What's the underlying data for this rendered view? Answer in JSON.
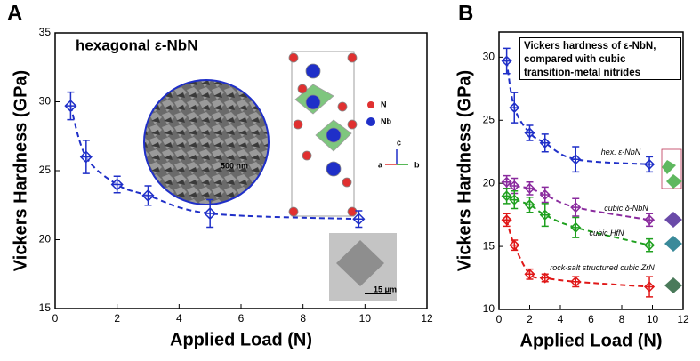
{
  "chart_data": [
    {
      "type": "line",
      "panel_label": "A",
      "title": "hexagonal ε-NbN",
      "x_label": "Applied Load (N)",
      "y_label": "Vickers Hardness (GPa)",
      "xlim": [
        0,
        12
      ],
      "xticks": [
        0,
        2,
        4,
        6,
        8,
        10,
        12
      ],
      "ylim": [
        15,
        35
      ],
      "yticks": [
        15,
        20,
        25,
        30,
        35
      ],
      "annotations": [
        "500 nm",
        "15 μm",
        "N",
        "Nb",
        "c",
        "a",
        "b"
      ],
      "x": [
        0.5,
        1,
        2,
        3,
        5,
        9.8
      ],
      "series": [
        {
          "color": "#1f2fc8",
          "values": [
            29.7,
            26,
            24,
            23.2,
            21.9,
            21.5
          ],
          "errors": [
            1,
            1.2,
            0.6,
            0.7,
            1,
            0.6
          ]
        }
      ]
    },
    {
      "type": "line",
      "panel_label": "B",
      "title_lines": [
        "Vickers hardness of ε-NbN,",
        "compared with cubic",
        "transition-metal nitrides"
      ],
      "x_label": "Applied Load (N)",
      "y_label": "Vickers Hardness (GPa)",
      "xlim": [
        0,
        12
      ],
      "xticks": [
        0,
        2,
        4,
        6,
        8,
        10,
        12
      ],
      "ylim": [
        10,
        32
      ],
      "yticks": [
        10,
        15,
        20,
        25,
        30
      ],
      "x": [
        0.5,
        1,
        2,
        3,
        5,
        9.8
      ],
      "series": [
        {
          "name": "hex. ε-NbN",
          "color": "#1f2fc8",
          "values": [
            29.7,
            26,
            24,
            23.2,
            21.9,
            21.5
          ],
          "errors": [
            1,
            1.2,
            0.6,
            0.7,
            1,
            0.6
          ]
        },
        {
          "name": "cubic δ-NbN",
          "color": "#8a2b9e",
          "values": [
            20.1,
            19.8,
            19.6,
            19.1,
            18.1,
            17.1
          ],
          "errors": [
            0.5,
            0.6,
            0.5,
            0.6,
            0.7,
            0.5
          ]
        },
        {
          "name": "cubic HfN",
          "color": "#1fa01f",
          "values": [
            19,
            18.7,
            18.3,
            17.5,
            16.5,
            15.1
          ],
          "errors": [
            0.6,
            0.7,
            0.6,
            0.9,
            0.8,
            0.5
          ]
        },
        {
          "name": "rock-salt structured cubic ZrN",
          "color": "#e01818",
          "values": [
            17.1,
            15.1,
            12.8,
            12.5,
            12.2,
            11.8
          ],
          "errors": [
            0.5,
            0.4,
            0.4,
            0.3,
            0.4,
            0.8
          ]
        }
      ]
    }
  ]
}
